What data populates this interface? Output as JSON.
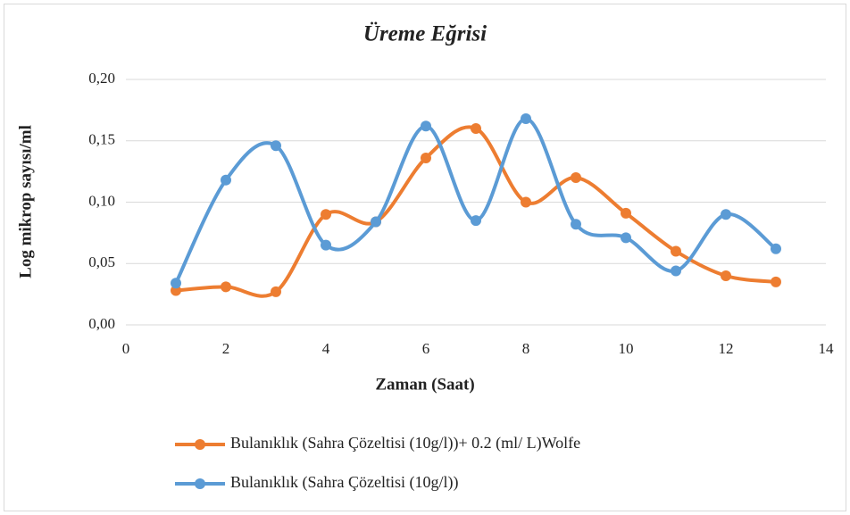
{
  "chart_data": {
    "type": "line",
    "title": "Üreme Eğrisi",
    "xlabel": "Zaman (Saat)",
    "ylabel": "Log mikrop sayısı/ml",
    "x": [
      1,
      2,
      3,
      4,
      5,
      6,
      7,
      8,
      9,
      10,
      11,
      12,
      13
    ],
    "series": [
      {
        "name": "Bulanıklık  (Sahra Çözeltisi (10g/l))+ 0.2 (ml/ L)Wolfe",
        "color": "#ed7d31",
        "values": [
          0.028,
          0.031,
          0.027,
          0.09,
          0.084,
          0.136,
          0.16,
          0.1,
          0.12,
          0.091,
          0.06,
          0.04,
          0.035
        ]
      },
      {
        "name": "Bulanıklık  (Sahra Çözeltisi (10g/l))",
        "color": "#5b9bd5",
        "values": [
          0.034,
          0.118,
          0.146,
          0.065,
          0.084,
          0.162,
          0.085,
          0.168,
          0.082,
          0.071,
          0.044,
          0.09,
          0.062
        ]
      }
    ],
    "xlim": [
      0,
      14
    ],
    "xticks": [
      0,
      2,
      4,
      6,
      8,
      10,
      12,
      14
    ],
    "ylim": [
      0,
      0.2
    ],
    "yticks": [
      {
        "value": 0,
        "label": "0,00"
      },
      {
        "value": 0.05,
        "label": "0,05"
      },
      {
        "value": 0.1,
        "label": "0,10"
      },
      {
        "value": 0.15,
        "label": "0,15"
      },
      {
        "value": 0.2,
        "label": "0,20"
      }
    ],
    "grid": true,
    "smooth": true,
    "legend": "bottom"
  }
}
